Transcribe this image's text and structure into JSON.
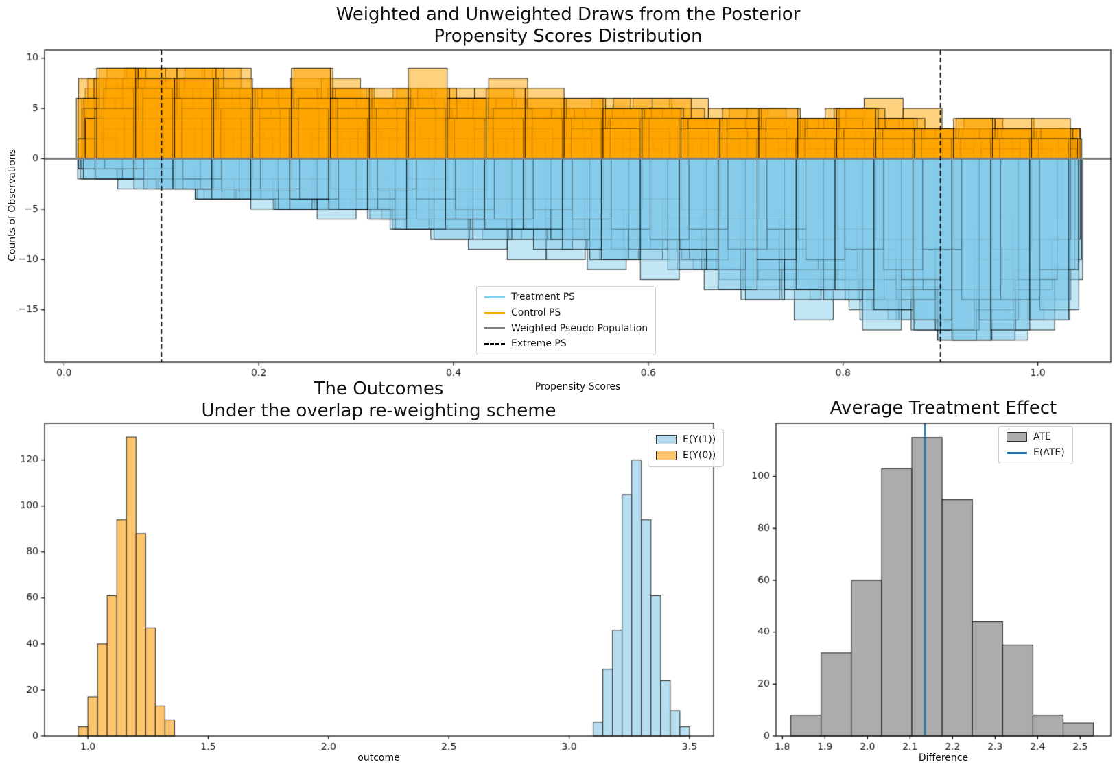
{
  "chart_data": [
    {
      "type": "mirrored_histogram_draws",
      "title": "Weighted and Unweighted Draws from the Posterior",
      "subtitle": "Propensity Scores Distribution",
      "xlabel": "Propensity Scores",
      "ylabel": "Counts of Observations",
      "xlim": [
        -0.02,
        1.075
      ],
      "ylim": [
        -20.2,
        10.8
      ],
      "x_ticks": [
        {
          "v": 0.0,
          "label": "0.0"
        },
        {
          "v": 0.2,
          "label": "0.2"
        },
        {
          "v": 0.4,
          "label": "0.4"
        },
        {
          "v": 0.6,
          "label": "0.6"
        },
        {
          "v": 0.8,
          "label": "0.8"
        },
        {
          "v": 1.0,
          "label": "1.0"
        }
      ],
      "y_ticks": [
        {
          "v": 10,
          "label": "10"
        },
        {
          "v": 5,
          "label": "5"
        },
        {
          "v": 0,
          "label": "0"
        },
        {
          "v": -5,
          "label": "−5"
        },
        {
          "v": -10,
          "label": "−10"
        },
        {
          "v": -15,
          "label": "−15"
        }
      ],
      "extreme_ps_lines": [
        0.1,
        0.9
      ],
      "weighted_pseudo_population_y": 0,
      "bins": {
        "start": 0.03,
        "width": 0.04,
        "count": 25
      },
      "n_draws_per_group": 32,
      "control_mean_counts": [
        5.5,
        5.5,
        5.5,
        5.5,
        5.0,
        5.0,
        4.5,
        4.5,
        4.5,
        4.0,
        4.0,
        4.0,
        3.5,
        3.5,
        3.5,
        3.0,
        3.0,
        3.0,
        2.5,
        2.5,
        2.5,
        2.0,
        2.0,
        2.0,
        2.0
      ],
      "control_max_count": 9,
      "treatment_mean_counts": [
        -1.0,
        -1.5,
        -2.0,
        -2.5,
        -2.5,
        -3.0,
        -3.5,
        -3.5,
        -4.0,
        -4.5,
        -5.0,
        -5.5,
        -5.5,
        -6.0,
        -6.5,
        -7.0,
        -7.5,
        -8.0,
        -8.5,
        -9.0,
        -10.0,
        -10.5,
        -11.0,
        -11.0,
        -10.5
      ],
      "treatment_min_count": -18,
      "colors": {
        "control_fill": "#ffa500",
        "treatment_fill": "#87ceeb",
        "fill_alpha": 0.5,
        "edge": "#000000",
        "pseudo_population_line": "#808080",
        "extreme_line": "#000000"
      },
      "legend": [
        {
          "label": "Treatment PS",
          "swatch": "line",
          "color": "#87ceeb"
        },
        {
          "label": "Control PS",
          "swatch": "line",
          "color": "#ffa500"
        },
        {
          "label": "Weighted Pseudo Population",
          "swatch": "line",
          "color": "#808080"
        },
        {
          "label": "Extreme PS",
          "swatch": "dashed-line",
          "color": "#000000"
        }
      ]
    },
    {
      "type": "histogram",
      "title": "The Outcomes",
      "subtitle": "Under the overlap re-weighting scheme",
      "xlabel": "outcome",
      "xlim": [
        0.82,
        3.6
      ],
      "ylim": [
        0,
        136
      ],
      "x_ticks": [
        {
          "v": 1.0,
          "label": "1.0"
        },
        {
          "v": 1.5,
          "label": "1.5"
        },
        {
          "v": 2.0,
          "label": "2.0"
        },
        {
          "v": 2.5,
          "label": "2.5"
        },
        {
          "v": 3.0,
          "label": "3.0"
        },
        {
          "v": 3.5,
          "label": "3.5"
        }
      ],
      "y_ticks": [
        {
          "v": 0,
          "label": "0"
        },
        {
          "v": 20,
          "label": "20"
        },
        {
          "v": 40,
          "label": "40"
        },
        {
          "v": 60,
          "label": "60"
        },
        {
          "v": 80,
          "label": "80"
        },
        {
          "v": 100,
          "label": "100"
        },
        {
          "v": 120,
          "label": "120"
        }
      ],
      "series": [
        {
          "name": "E(Y(1))",
          "fill": "#b7ddf0",
          "edge": "#262626",
          "bin_start": 3.1,
          "bin_width": 0.04,
          "values": [
            6,
            29,
            46,
            105,
            120,
            94,
            61,
            24,
            11,
            4
          ]
        },
        {
          "name": "E(Y(0))",
          "fill": "#fbc46d",
          "edge": "#262626",
          "bin_start": 0.96,
          "bin_width": 0.04,
          "values": [
            4,
            17,
            40,
            61,
            94,
            130,
            88,
            47,
            13,
            7
          ]
        }
      ],
      "legend": [
        {
          "label": "E(Y(1))",
          "swatch": "patch",
          "color": "#b7ddf0"
        },
        {
          "label": "E(Y(0))",
          "swatch": "patch",
          "color": "#fbc46d"
        }
      ]
    },
    {
      "type": "histogram",
      "title": "Average Treatment Effect",
      "xlabel": "Difference",
      "xlim": [
        1.785,
        2.572
      ],
      "ylim": [
        0,
        120.5
      ],
      "x_ticks": [
        {
          "v": 1.8,
          "label": "1.8"
        },
        {
          "v": 1.9,
          "label": "1.9"
        },
        {
          "v": 2.0,
          "label": "2.0"
        },
        {
          "v": 2.1,
          "label": "2.1"
        },
        {
          "v": 2.2,
          "label": "2.2"
        },
        {
          "v": 2.3,
          "label": "2.3"
        },
        {
          "v": 2.4,
          "label": "2.4"
        },
        {
          "v": 2.5,
          "label": "2.5"
        }
      ],
      "y_ticks": [
        {
          "v": 0,
          "label": "0"
        },
        {
          "v": 20,
          "label": "20"
        },
        {
          "v": 40,
          "label": "40"
        },
        {
          "v": 60,
          "label": "60"
        },
        {
          "v": 80,
          "label": "80"
        },
        {
          "v": 100,
          "label": "100"
        }
      ],
      "series": [
        {
          "name": "ATE",
          "fill": "#acacac",
          "edge": "#1a1a1a",
          "bin_start": 1.82,
          "bin_width": 0.0711,
          "values": [
            8,
            32,
            60,
            103,
            115,
            91,
            44,
            35,
            8,
            5
          ]
        }
      ],
      "e_ate": {
        "value": 2.135,
        "color": "#1f77b4"
      },
      "legend": [
        {
          "label": "ATE",
          "swatch": "patch",
          "color": "#acacac"
        },
        {
          "label": "E(ATE)",
          "swatch": "line",
          "color": "#1f77b4"
        }
      ]
    }
  ]
}
